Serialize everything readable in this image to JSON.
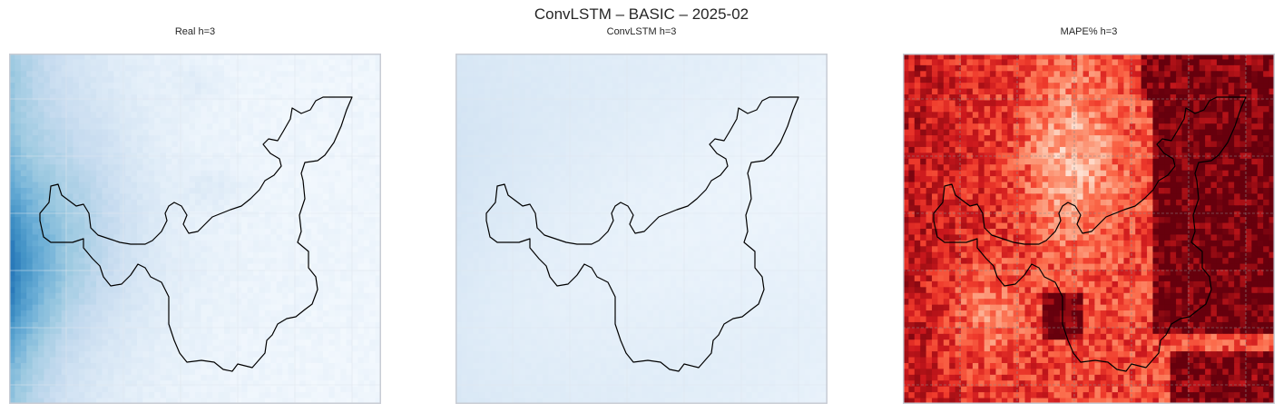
{
  "suptitle": "ConvLSTM – BASIC – 2025-02",
  "chart_data": [
    {
      "type": "heatmap",
      "title": "Real h=3",
      "colormap": "Blues",
      "grid": true,
      "description_axes": "none",
      "palette": [
        "#f7fbff",
        "#deebf7",
        "#c6dbef",
        "#9ecae1",
        "#6baed6",
        "#4292c6",
        "#2171b5",
        "#08519c",
        "#08306b"
      ]
    },
    {
      "type": "heatmap",
      "title": "ConvLSTM h=3",
      "colormap": "Blues",
      "grid": true,
      "palette": [
        "#f7fbff",
        "#deebf7",
        "#c6dbef",
        "#9ecae1",
        "#6baed6",
        "#4292c6",
        "#2171b5",
        "#08519c",
        "#08306b"
      ]
    },
    {
      "type": "heatmap",
      "title": "MAPE% h=3",
      "colormap": "Reds",
      "grid": true,
      "palette": [
        "#fff5f0",
        "#fee0d2",
        "#fcbba1",
        "#fc9272",
        "#fb6a4a",
        "#ef3b2c",
        "#cb181d",
        "#a50f15",
        "#67000d"
      ]
    }
  ],
  "colors": {
    "frame": "#c8ccd4",
    "boundary": "#000000",
    "grid_light": "#dfe6ee",
    "grid_dark": "#8a8a8a"
  }
}
